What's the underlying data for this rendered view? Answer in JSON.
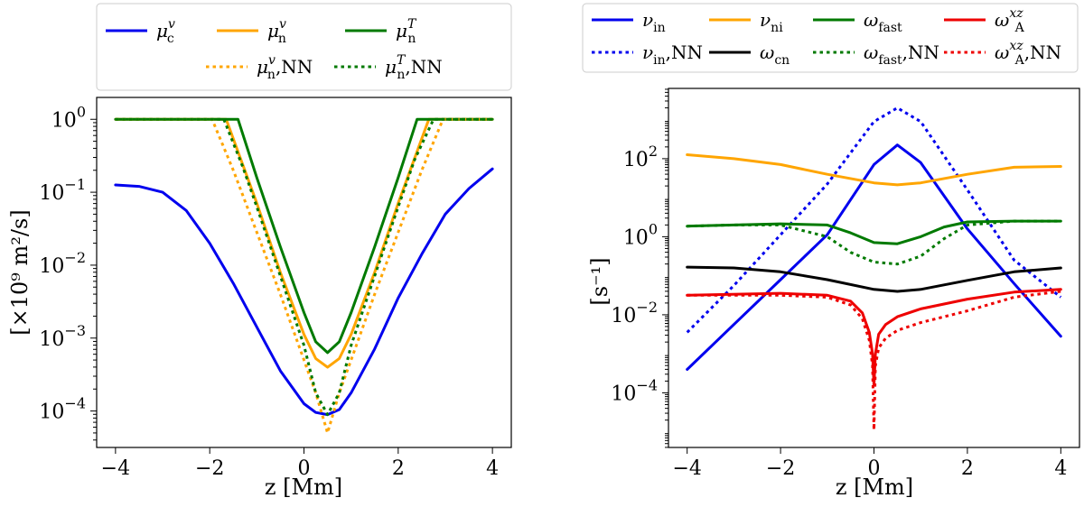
{
  "chart_data": [
    {
      "type": "line",
      "xlabel": "z [Mm]",
      "ylabel": "[×10⁹ m²/s]",
      "yscale": "log",
      "xlim": [
        -4.4,
        4.4
      ],
      "ylim_exp": [
        -4.5,
        0.3
      ],
      "xticks": [
        "−4",
        "−2",
        "0",
        "2",
        "4"
      ],
      "xtick_values": [
        -4,
        -2,
        0,
        2,
        4
      ],
      "yticks": [
        {
          "exp": 0,
          "base": "10",
          "sup": "0"
        },
        {
          "exp": -1,
          "base": "10",
          "sup": "−1"
        },
        {
          "exp": -2,
          "base": "10",
          "sup": "−2"
        },
        {
          "exp": -3,
          "base": "10",
          "sup": "−3"
        },
        {
          "exp": -4,
          "base": "10",
          "sup": "−4"
        }
      ],
      "legend": {
        "location": "top, outside",
        "entries": [
          {
            "sym": "μ",
            "sup": "v",
            "sub": "c",
            "nn": "",
            "color": "#0000ee",
            "dash": false
          },
          {
            "sym": "μ",
            "sup": "v",
            "sub": "n",
            "nn": "",
            "color": "#ffa500",
            "dash": false
          },
          {
            "sym": "μ",
            "sup": "T",
            "sub": "n",
            "nn": "",
            "color": "#007a00",
            "dash": false
          },
          {
            "sym": "μ",
            "sup": "v",
            "sub": "n",
            "nn": ",NN",
            "color": "#ffa500",
            "dash": true
          },
          {
            "sym": "μ",
            "sup": "T",
            "sub": "n",
            "nn": ",NN",
            "color": "#007a00",
            "dash": true
          }
        ]
      },
      "series": [
        {
          "name": "mu_c_v",
          "color": "#0000ee",
          "dash": false,
          "x": [
            -4,
            -3.5,
            -3,
            -2.5,
            -2,
            -1.5,
            -1,
            -0.5,
            0,
            0.25,
            0.5,
            0.75,
            1,
            1.5,
            2,
            2.5,
            3,
            3.5,
            4
          ],
          "log10y": [
            -0.9,
            -0.92,
            -1.0,
            -1.25,
            -1.7,
            -2.25,
            -2.85,
            -3.45,
            -3.9,
            -4.02,
            -4.05,
            -3.98,
            -3.75,
            -3.15,
            -2.45,
            -1.85,
            -1.3,
            -0.95,
            -0.68
          ]
        },
        {
          "name": "mu_n_v",
          "color": "#ffa500",
          "dash": false,
          "x": [
            -4,
            -1.65,
            -1,
            -0.5,
            0,
            0.25,
            0.5,
            0.75,
            1,
            1.5,
            2,
            2.65,
            4
          ],
          "log10y": [
            0,
            0,
            -1.15,
            -2.1,
            -2.95,
            -3.28,
            -3.4,
            -3.28,
            -2.95,
            -2.1,
            -1.15,
            0,
            0
          ]
        },
        {
          "name": "mu_n_T",
          "color": "#007a00",
          "dash": false,
          "x": [
            -4,
            -1.4,
            -1,
            -0.5,
            0,
            0.25,
            0.5,
            0.75,
            1,
            1.5,
            2,
            2.4,
            4
          ],
          "log10y": [
            0,
            0,
            -0.8,
            -1.75,
            -2.65,
            -3.05,
            -3.2,
            -3.05,
            -2.65,
            -1.75,
            -0.8,
            0,
            0
          ]
        },
        {
          "name": "mu_n_v_NN",
          "color": "#ffa500",
          "dash": true,
          "x": [
            -4,
            -1.95,
            -1.5,
            -1,
            -0.5,
            0,
            0.25,
            0.5,
            0.75,
            1,
            1.5,
            2,
            2.5,
            2.95,
            4
          ],
          "log10y": [
            0,
            0,
            -0.7,
            -1.55,
            -2.4,
            -3.3,
            -3.75,
            -4.3,
            -3.75,
            -3.3,
            -2.4,
            -1.55,
            -0.7,
            0,
            0
          ]
        },
        {
          "name": "mu_n_T_NN",
          "color": "#007a00",
          "dash": true,
          "x": [
            -4,
            -1.7,
            -1.3,
            -1,
            -0.5,
            0,
            0.25,
            0.5,
            0.75,
            1,
            1.5,
            2,
            2.35,
            2.75,
            4
          ],
          "log10y": [
            0,
            0,
            -0.65,
            -1.2,
            -2.15,
            -3.1,
            -3.75,
            -4.05,
            -3.75,
            -3.1,
            -2.15,
            -1.2,
            -0.55,
            0,
            0
          ]
        }
      ]
    },
    {
      "type": "line",
      "xlabel": "z [Mm]",
      "ylabel": "[s⁻¹]",
      "yscale": "log",
      "xlim": [
        -4.4,
        4.4
      ],
      "ylim_exp": [
        -5.4,
        3.8
      ],
      "xticks": [
        "−4",
        "−2",
        "0",
        "2",
        "4"
      ],
      "xtick_values": [
        -4,
        -2,
        0,
        2,
        4
      ],
      "yticks": [
        {
          "exp": 2,
          "base": "10",
          "sup": "2"
        },
        {
          "exp": 0,
          "base": "10",
          "sup": "0"
        },
        {
          "exp": -2,
          "base": "10",
          "sup": "−2"
        },
        {
          "exp": -4,
          "base": "10",
          "sup": "−4"
        }
      ],
      "legend": {
        "location": "top, outside",
        "entries": [
          {
            "sym": "ν",
            "sup": "",
            "sub": "in",
            "nn": "",
            "color": "#0000ee",
            "dash": false
          },
          {
            "sym": "ν",
            "sup": "",
            "sub": "ni",
            "nn": "",
            "color": "#ffa500",
            "dash": false
          },
          {
            "sym": "ω",
            "sup": "",
            "sub": "fast",
            "nn": "",
            "color": "#007a00",
            "dash": false
          },
          {
            "sym": "ω",
            "sup": "xz",
            "sub": "A",
            "nn": "",
            "color": "#ee0000",
            "dash": false
          },
          {
            "sym": "ν",
            "sup": "",
            "sub": "in",
            "nn": ",NN",
            "color": "#0000ee",
            "dash": true
          },
          {
            "sym": "ω",
            "sup": "",
            "sub": "cn",
            "nn": "",
            "color": "#000000",
            "dash": false
          },
          {
            "sym": "ω",
            "sup": "",
            "sub": "fast",
            "nn": ",NN",
            "color": "#007a00",
            "dash": true
          },
          {
            "sym": "ω",
            "sup": "xz",
            "sub": "A",
            "nn": ",NN",
            "color": "#ee0000",
            "dash": true
          }
        ]
      },
      "series": [
        {
          "name": "nu_in",
          "color": "#0000ee",
          "dash": false,
          "x": [
            -4,
            -3,
            -2,
            -1,
            0,
            0.5,
            1,
            2,
            3,
            4
          ],
          "log10y": [
            -3.4,
            -2.25,
            -1.1,
            0.05,
            1.85,
            2.35,
            1.9,
            0.2,
            -1.2,
            -2.55
          ]
        },
        {
          "name": "nu_in_NN",
          "color": "#0000ee",
          "dash": true,
          "x": [
            -4,
            -3,
            -2,
            -1,
            0,
            0.5,
            1,
            2,
            3,
            4
          ],
          "log10y": [
            -2.45,
            -1.25,
            0.05,
            1.35,
            2.95,
            3.3,
            2.95,
            1.2,
            -0.6,
            -1.55
          ]
        },
        {
          "name": "nu_ni",
          "color": "#ffa500",
          "dash": false,
          "x": [
            -4,
            -3,
            -2,
            -1,
            0,
            0.5,
            1,
            2,
            3,
            4
          ],
          "log10y": [
            2.1,
            2.0,
            1.85,
            1.6,
            1.38,
            1.33,
            1.38,
            1.6,
            1.78,
            1.8
          ]
        },
        {
          "name": "omega_fast",
          "color": "#007a00",
          "dash": false,
          "x": [
            -4,
            -3,
            -2,
            -1,
            -0.5,
            0,
            0.5,
            1,
            1.5,
            2,
            3,
            4
          ],
          "log10y": [
            0.27,
            0.3,
            0.33,
            0.3,
            0.1,
            -0.15,
            -0.18,
            0.0,
            0.25,
            0.38,
            0.4,
            0.4
          ]
        },
        {
          "name": "omega_fast_NN",
          "color": "#007a00",
          "dash": true,
          "x": [
            -4,
            -3,
            -2,
            -1,
            -0.5,
            0,
            0.5,
            1,
            1.5,
            2,
            3,
            4
          ],
          "log10y": [
            0.27,
            0.3,
            0.3,
            0.0,
            -0.4,
            -0.65,
            -0.7,
            -0.5,
            -0.05,
            0.3,
            0.4,
            0.4
          ]
        },
        {
          "name": "omega_cn",
          "color": "#000000",
          "dash": false,
          "x": [
            -4,
            -3,
            -2,
            -1,
            0,
            0.5,
            1,
            2,
            3,
            4
          ],
          "log10y": [
            -0.78,
            -0.8,
            -0.9,
            -1.1,
            -1.35,
            -1.4,
            -1.35,
            -1.12,
            -0.9,
            -0.8
          ]
        },
        {
          "name": "omega_A_xz",
          "color": "#ee0000",
          "dash": false,
          "x": [
            -4,
            -2,
            -1,
            -0.5,
            -0.25,
            -0.1,
            -0.03,
            0,
            0.03,
            0.1,
            0.25,
            0.5,
            1,
            2,
            3,
            4
          ],
          "log10y": [
            -1.5,
            -1.45,
            -1.5,
            -1.65,
            -1.95,
            -2.45,
            -3.0,
            -3.8,
            -3.0,
            -2.5,
            -2.25,
            -2.05,
            -1.85,
            -1.6,
            -1.42,
            -1.35
          ]
        },
        {
          "name": "omega_A_xz_NN",
          "color": "#ee0000",
          "dash": true,
          "x": [
            -4,
            -2,
            -1,
            -0.5,
            -0.25,
            -0.1,
            -0.03,
            0,
            0.03,
            0.1,
            0.25,
            0.5,
            1,
            2,
            3,
            4
          ],
          "log10y": [
            -1.5,
            -1.5,
            -1.55,
            -1.75,
            -2.1,
            -2.65,
            -3.3,
            -4.95,
            -3.3,
            -2.85,
            -2.6,
            -2.4,
            -2.2,
            -1.9,
            -1.55,
            -1.4
          ]
        }
      ]
    }
  ]
}
